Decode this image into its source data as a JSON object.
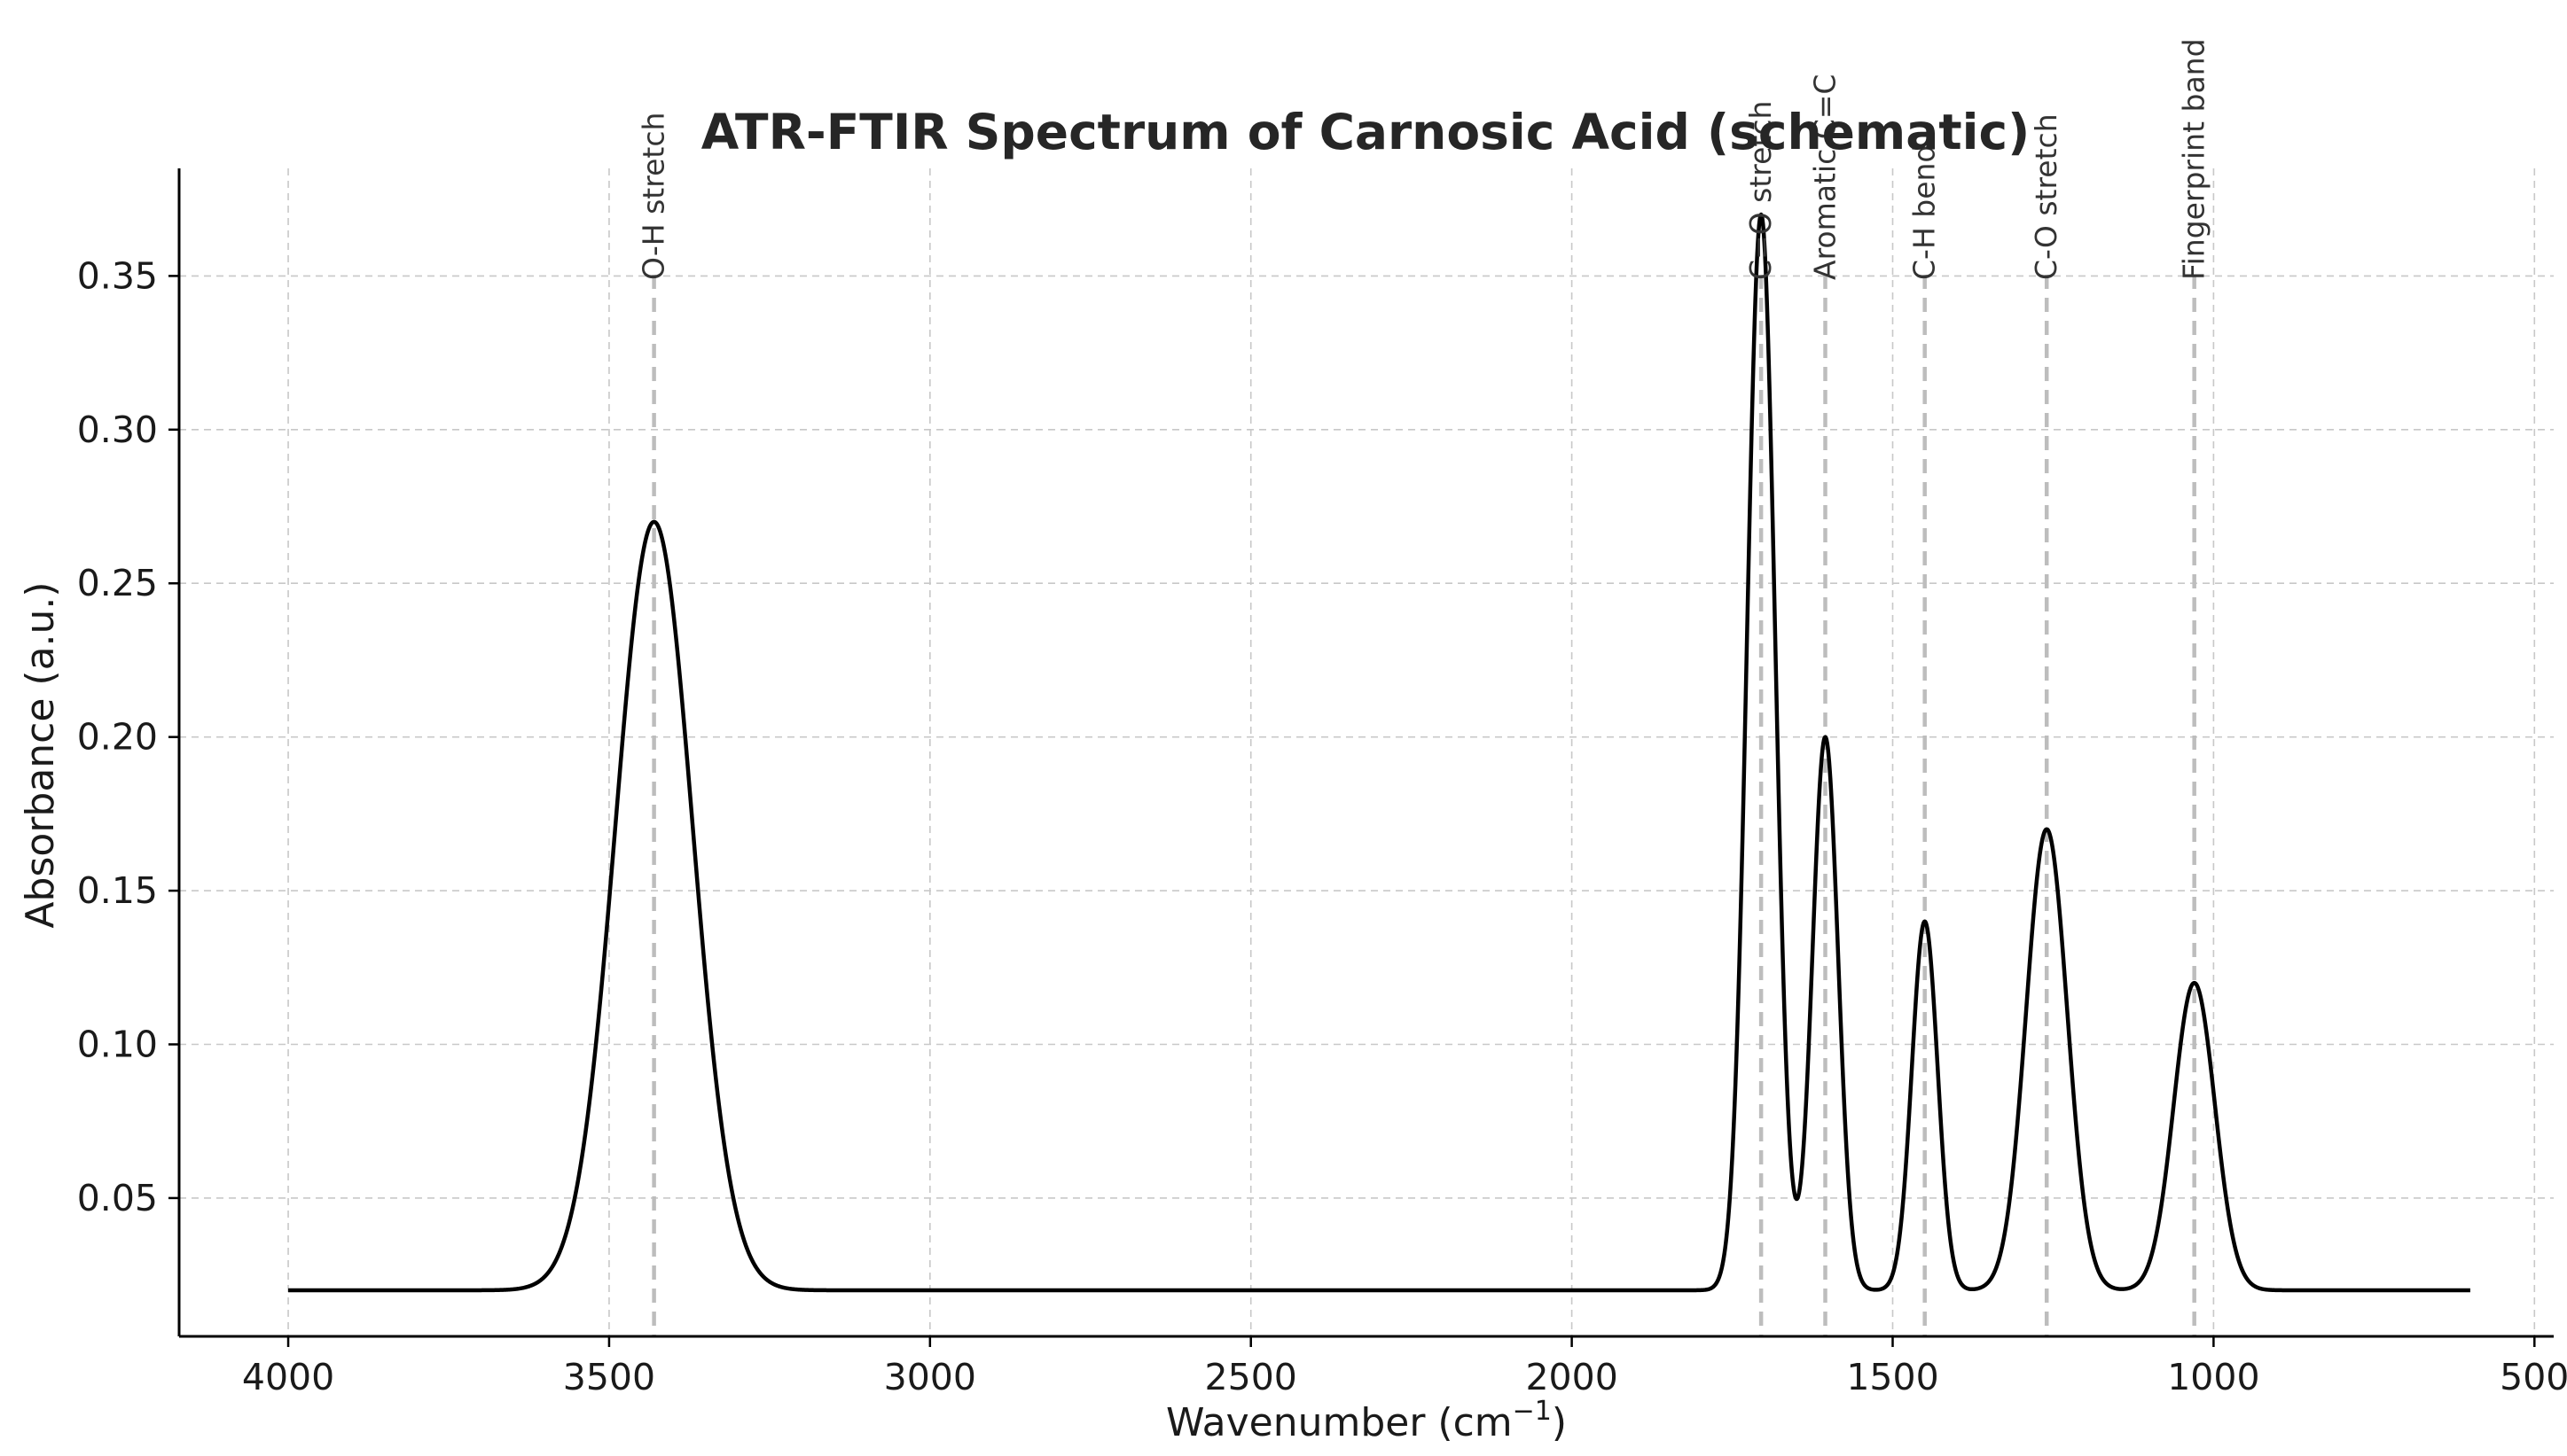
{
  "chart_data": {
    "type": "line",
    "title": "ATR-FTIR Spectrum of Carnosic Acid (schematic)",
    "xlabel": "Wavenumber (cm",
    "xlabel_sup": "−1",
    "xlabel_end": ")",
    "ylabel": "Absorbance (a.u.)",
    "xlim": [
      4170,
      470
    ],
    "ylim": [
      0.005,
      0.385
    ],
    "x_ticks": [
      4000,
      3500,
      3000,
      2500,
      2000,
      1500,
      1000,
      500
    ],
    "y_ticks": [
      0.05,
      0.1,
      0.15,
      0.2,
      0.25,
      0.3,
      0.35
    ],
    "x_tick_labels": [
      "4000",
      "3500",
      "3000",
      "2500",
      "2000",
      "1500",
      "1000",
      "500"
    ],
    "y_tick_labels": [
      "0.05",
      "0.10",
      "0.15",
      "0.20",
      "0.25",
      "0.30",
      "0.35"
    ],
    "grid": true,
    "line_color": "#000000",
    "baseline": 0.02,
    "x_range": [
      4000,
      600
    ],
    "peaks": [
      {
        "label": "O-H stretch",
        "center": 3430,
        "height": 0.25,
        "width": 60
      },
      {
        "label": "C=O stretch",
        "center": 1705,
        "height": 0.35,
        "width": 22
      },
      {
        "label": "Aromatic C=C",
        "center": 1605,
        "height": 0.18,
        "width": 20
      },
      {
        "label": "C-H bend",
        "center": 1450,
        "height": 0.12,
        "width": 20
      },
      {
        "label": "C-O stretch",
        "center": 1260,
        "height": 0.15,
        "width": 32
      },
      {
        "label": "Fingerprint band",
        "center": 1030,
        "height": 0.1,
        "width": 32
      }
    ]
  }
}
